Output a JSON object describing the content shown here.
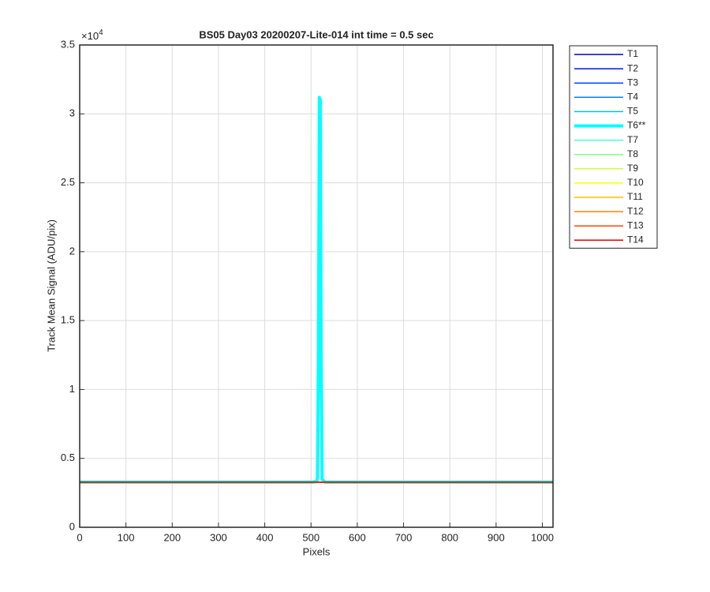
{
  "chart_data": {
    "type": "line",
    "title": "BS05 Day03 20200207-Lite-014 int time = 0.5 sec",
    "x_label": "Pixels",
    "y_label": "Track Mean Signal (ADU/pix)",
    "y_multiplier_base": "×10",
    "y_multiplier_exponent": "4",
    "x": [
      0,
      500,
      512,
      514,
      516,
      518,
      520,
      522,
      524,
      530,
      1023
    ],
    "series": [
      {
        "name": "T1",
        "color": "#0000b4",
        "linewidth": 1.5,
        "values": [
          3270,
          3270,
          3270,
          3270,
          3270,
          3270,
          3270,
          3270,
          3270,
          3270,
          3270
        ]
      },
      {
        "name": "T2",
        "color": "#0014e6",
        "linewidth": 1.5,
        "values": [
          3270,
          3270,
          3270,
          3270,
          3270,
          3270,
          3270,
          3270,
          3270,
          3270,
          3270
        ]
      },
      {
        "name": "T3",
        "color": "#0046ff",
        "linewidth": 1.5,
        "values": [
          3270,
          3270,
          3270,
          3270,
          3270,
          3270,
          3270,
          3270,
          3270,
          3270,
          3270
        ]
      },
      {
        "name": "T4",
        "color": "#0082ff",
        "linewidth": 1.5,
        "values": [
          3270,
          3270,
          3270,
          3270,
          3270,
          3270,
          3270,
          3270,
          3270,
          3270,
          3270
        ]
      },
      {
        "name": "T5",
        "color": "#00beff",
        "linewidth": 1.5,
        "values": [
          3270,
          3270,
          3270,
          3270,
          3270,
          3270,
          3270,
          3270,
          3270,
          3270,
          3270
        ]
      },
      {
        "name": "T6**",
        "color": "#00ffff",
        "linewidth": 4,
        "values": [
          3270,
          3270,
          3300,
          3600,
          12000,
          31200,
          31000,
          12000,
          3500,
          3270,
          3270
        ]
      },
      {
        "name": "T7",
        "color": "#46ffc8",
        "linewidth": 1.5,
        "values": [
          3270,
          3270,
          3270,
          3270,
          3270,
          3270,
          3270,
          3270,
          3270,
          3270,
          3270
        ]
      },
      {
        "name": "T8",
        "color": "#82ff82",
        "linewidth": 1.5,
        "values": [
          3270,
          3270,
          3270,
          3270,
          3270,
          3270,
          3270,
          3270,
          3270,
          3270,
          3270
        ]
      },
      {
        "name": "T9",
        "color": "#c8ff46",
        "linewidth": 1.5,
        "values": [
          3270,
          3270,
          3270,
          3270,
          3270,
          3270,
          3270,
          3270,
          3270,
          3270,
          3270
        ]
      },
      {
        "name": "T10",
        "color": "#ffff00",
        "linewidth": 1.5,
        "values": [
          3270,
          3270,
          3270,
          3270,
          3270,
          3270,
          3270,
          3270,
          3270,
          3270,
          3270
        ]
      },
      {
        "name": "T11",
        "color": "#ffbe00",
        "linewidth": 1.5,
        "values": [
          3270,
          3270,
          3270,
          3270,
          3270,
          3270,
          3270,
          3270,
          3270,
          3270,
          3270
        ]
      },
      {
        "name": "T12",
        "color": "#ff8200",
        "linewidth": 1.5,
        "values": [
          3270,
          3270,
          3270,
          3270,
          3270,
          3270,
          3270,
          3270,
          3270,
          3270,
          3270
        ]
      },
      {
        "name": "T13",
        "color": "#ff4600",
        "linewidth": 1.5,
        "values": [
          3270,
          3270,
          3270,
          3270,
          3270,
          3270,
          3270,
          3270,
          3270,
          3270,
          3270
        ]
      },
      {
        "name": "T14",
        "color": "#e60000",
        "linewidth": 1.5,
        "values": [
          3270,
          3270,
          3270,
          3270,
          3270,
          3270,
          3270,
          3270,
          3270,
          3270,
          3270
        ]
      }
    ],
    "xlim": [
      0,
      1023
    ],
    "xticks": [
      0,
      100,
      200,
      300,
      400,
      500,
      600,
      700,
      800,
      900,
      1000
    ],
    "ylim": [
      0,
      35000
    ],
    "yticks": [
      {
        "value": 0,
        "label": "0"
      },
      {
        "value": 5000,
        "label": "0.5"
      },
      {
        "value": 10000,
        "label": "1"
      },
      {
        "value": 15000,
        "label": "1.5"
      },
      {
        "value": 20000,
        "label": "2"
      },
      {
        "value": 25000,
        "label": "2.5"
      },
      {
        "value": 30000,
        "label": "3"
      },
      {
        "value": 35000,
        "label": "3.5"
      }
    ],
    "grid": true,
    "legend_position": "outside-right"
  }
}
